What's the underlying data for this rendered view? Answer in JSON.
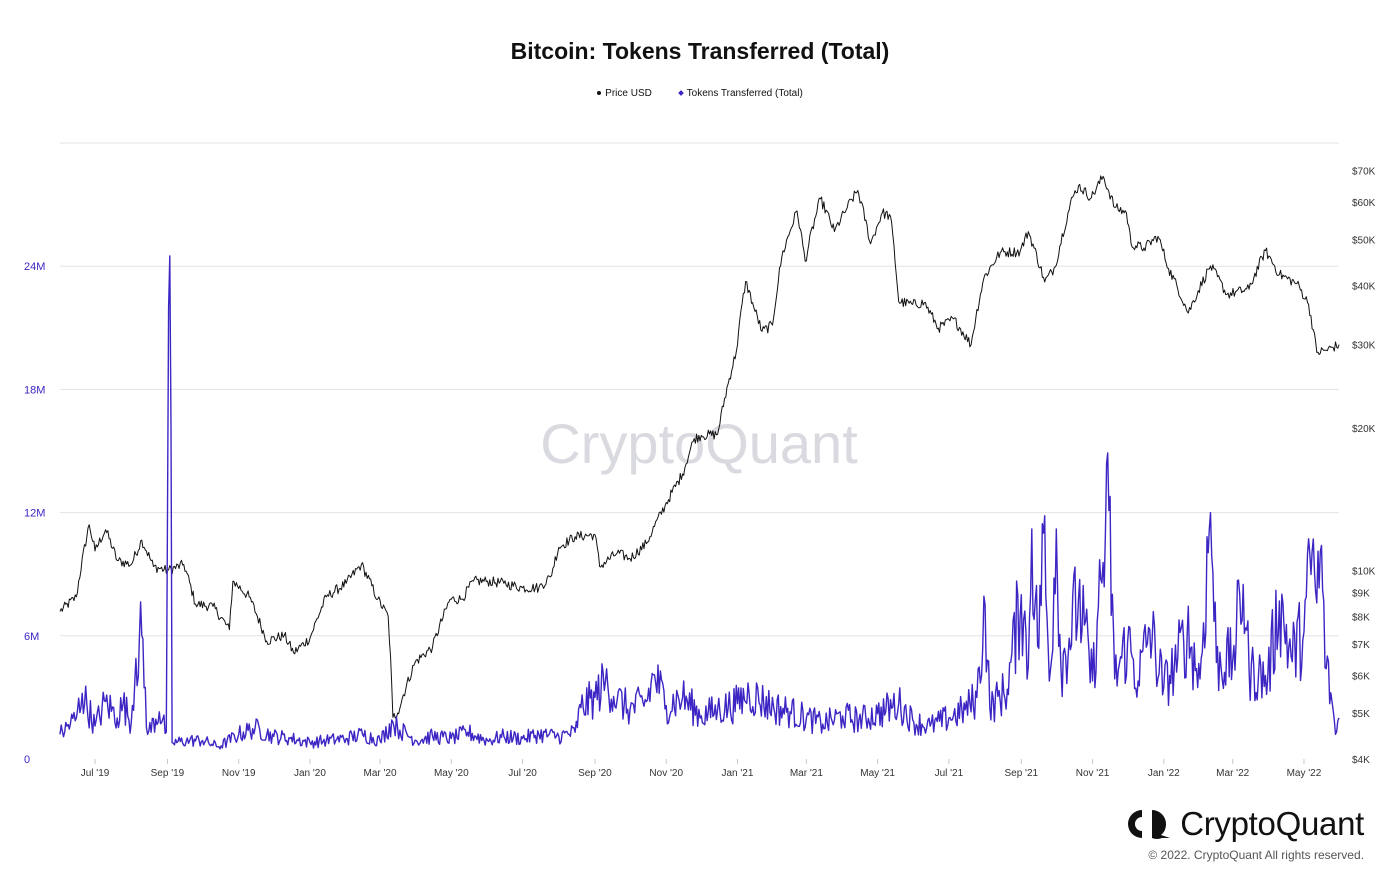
{
  "brand": {
    "name": "CryptoQuant",
    "watermark": "CryptoQuant",
    "copyright": "© 2022. CryptoQuant All rights reserved."
  },
  "colors": {
    "price": "#111111",
    "tokens": "#3b26c4",
    "grid": "#e3e3e3",
    "left_axis_text": "#3b26c4",
    "right_axis_text": "#333333",
    "watermark": "#d9d9e0"
  },
  "chart_data": {
    "type": "line",
    "title": "Bitcoin: Tokens Transferred (Total)",
    "legend_position": "top-center",
    "grid": true,
    "x_range": [
      "2019-06-01",
      "2022-05-31"
    ],
    "x_ticks": [
      {
        "label": "Jul '19",
        "date": "2019-07-01"
      },
      {
        "label": "Sep '19",
        "date": "2019-09-01"
      },
      {
        "label": "Nov '19",
        "date": "2019-11-01"
      },
      {
        "label": "Jan '20",
        "date": "2020-01-01"
      },
      {
        "label": "Mar '20",
        "date": "2020-03-01"
      },
      {
        "label": "May '20",
        "date": "2020-05-01"
      },
      {
        "label": "Jul '20",
        "date": "2020-07-01"
      },
      {
        "label": "Sep '20",
        "date": "2020-09-01"
      },
      {
        "label": "Nov '20",
        "date": "2020-11-01"
      },
      {
        "label": "Jan '21",
        "date": "2021-01-01"
      },
      {
        "label": "Mar '21",
        "date": "2021-03-01"
      },
      {
        "label": "May '21",
        "date": "2021-05-01"
      },
      {
        "label": "Jul '21",
        "date": "2021-07-01"
      },
      {
        "label": "Sep '21",
        "date": "2021-09-01"
      },
      {
        "label": "Nov '21",
        "date": "2021-11-01"
      },
      {
        "label": "Jan '22",
        "date": "2022-01-01"
      },
      {
        "label": "Mar '22",
        "date": "2022-03-01"
      },
      {
        "label": "May '22",
        "date": "2022-05-01"
      }
    ],
    "left_axis": {
      "series": "Tokens Transferred (Total)",
      "scale": "linear",
      "range": [
        0,
        30000000
      ],
      "ticks": [
        {
          "label": "0",
          "value": 0
        },
        {
          "label": "6M",
          "value": 6000000
        },
        {
          "label": "12M",
          "value": 12000000
        },
        {
          "label": "18M",
          "value": 18000000
        },
        {
          "label": "24M",
          "value": 24000000
        }
      ]
    },
    "right_axis": {
      "series": "Price USD",
      "scale": "log",
      "range": [
        4000,
        80000
      ],
      "ticks": [
        {
          "label": "$4K",
          "value": 4000
        },
        {
          "label": "$5K",
          "value": 5000
        },
        {
          "label": "$6K",
          "value": 6000
        },
        {
          "label": "$7K",
          "value": 7000
        },
        {
          "label": "$8K",
          "value": 8000
        },
        {
          "label": "$9K",
          "value": 9000
        },
        {
          "label": "$10K",
          "value": 10000
        },
        {
          "label": "$20K",
          "value": 20000
        },
        {
          "label": "$30K",
          "value": 30000
        },
        {
          "label": "$40K",
          "value": 40000
        },
        {
          "label": "$50K",
          "value": 50000
        },
        {
          "label": "$60K",
          "value": 60000
        },
        {
          "label": "$70K",
          "value": 70000
        }
      ]
    },
    "series": [
      {
        "name": "Price USD",
        "axis": "right",
        "color": "#111111",
        "points": [
          [
            "2019-06-01",
            8200
          ],
          [
            "2019-06-15",
            8800
          ],
          [
            "2019-06-26",
            12500
          ],
          [
            "2019-07-01",
            11000
          ],
          [
            "2019-07-10",
            12200
          ],
          [
            "2019-07-20",
            10500
          ],
          [
            "2019-08-01",
            10300
          ],
          [
            "2019-08-10",
            11600
          ],
          [
            "2019-08-20",
            10200
          ],
          [
            "2019-09-01",
            10000
          ],
          [
            "2019-09-15",
            10300
          ],
          [
            "2019-09-25",
            8500
          ],
          [
            "2019-10-10",
            8400
          ],
          [
            "2019-10-24",
            7500
          ],
          [
            "2019-10-27",
            9500
          ],
          [
            "2019-11-10",
            8800
          ],
          [
            "2019-11-25",
            7100
          ],
          [
            "2019-12-10",
            7300
          ],
          [
            "2019-12-18",
            6700
          ],
          [
            "2020-01-01",
            7200
          ],
          [
            "2020-01-15",
            8800
          ],
          [
            "2020-02-01",
            9400
          ],
          [
            "2020-02-14",
            10300
          ],
          [
            "2020-02-28",
            8700
          ],
          [
            "2020-03-08",
            8000
          ],
          [
            "2020-03-12",
            4900
          ],
          [
            "2020-03-16",
            5000
          ],
          [
            "2020-03-31",
            6400
          ],
          [
            "2020-04-15",
            6900
          ],
          [
            "2020-04-30",
            8700
          ],
          [
            "2020-05-10",
            8700
          ],
          [
            "2020-05-20",
            9500
          ],
          [
            "2020-06-01",
            9500
          ],
          [
            "2020-06-15",
            9400
          ],
          [
            "2020-07-01",
            9200
          ],
          [
            "2020-07-15",
            9200
          ],
          [
            "2020-07-25",
            9700
          ],
          [
            "2020-08-01",
            11200
          ],
          [
            "2020-08-15",
            11800
          ],
          [
            "2020-09-01",
            11900
          ],
          [
            "2020-09-05",
            10200
          ],
          [
            "2020-09-20",
            10900
          ],
          [
            "2020-10-01",
            10600
          ],
          [
            "2020-10-15",
            11400
          ],
          [
            "2020-10-31",
            13700
          ],
          [
            "2020-11-15",
            16000
          ],
          [
            "2020-11-25",
            19000
          ],
          [
            "2020-12-01",
            19300
          ],
          [
            "2020-12-15",
            19400
          ],
          [
            "2020-12-31",
            29000
          ],
          [
            "2021-01-08",
            40800
          ],
          [
            "2021-01-15",
            36000
          ],
          [
            "2021-01-22",
            32000
          ],
          [
            "2021-01-31",
            33000
          ],
          [
            "2021-02-08",
            46000
          ],
          [
            "2021-02-21",
            57500
          ],
          [
            "2021-02-28",
            45000
          ],
          [
            "2021-03-13",
            61000
          ],
          [
            "2021-03-25",
            52000
          ],
          [
            "2021-04-05",
            58500
          ],
          [
            "2021-04-14",
            63500
          ],
          [
            "2021-04-25",
            49000
          ],
          [
            "2021-05-05",
            57000
          ],
          [
            "2021-05-12",
            56000
          ],
          [
            "2021-05-19",
            37000
          ],
          [
            "2021-05-31",
            36500
          ],
          [
            "2021-06-10",
            36800
          ],
          [
            "2021-06-22",
            32500
          ],
          [
            "2021-07-05",
            34000
          ],
          [
            "2021-07-20",
            30000
          ],
          [
            "2021-07-31",
            41500
          ],
          [
            "2021-08-14",
            47000
          ],
          [
            "2021-08-31",
            47200
          ],
          [
            "2021-09-07",
            52000
          ],
          [
            "2021-09-21",
            40700
          ],
          [
            "2021-09-30",
            43800
          ],
          [
            "2021-10-15",
            61500
          ],
          [
            "2021-10-20",
            65000
          ],
          [
            "2021-10-31",
            61300
          ],
          [
            "2021-11-10",
            68000
          ],
          [
            "2021-11-20",
            58500
          ],
          [
            "2021-11-30",
            57000
          ],
          [
            "2021-12-04",
            49000
          ],
          [
            "2021-12-15",
            48000
          ],
          [
            "2021-12-27",
            50800
          ],
          [
            "2022-01-05",
            43500
          ],
          [
            "2022-01-22",
            35000
          ],
          [
            "2022-02-10",
            44000
          ],
          [
            "2022-02-24",
            38300
          ],
          [
            "2022-03-15",
            39300
          ],
          [
            "2022-03-29",
            47400
          ],
          [
            "2022-04-10",
            42200
          ],
          [
            "2022-04-25",
            40400
          ],
          [
            "2022-05-05",
            36500
          ],
          [
            "2022-05-12",
            28900
          ],
          [
            "2022-05-20",
            29200
          ],
          [
            "2022-05-31",
            30000
          ]
        ]
      },
      {
        "name": "Tokens Transferred (Total)",
        "axis": "left",
        "color": "#3b26c4",
        "points": [
          [
            "2019-06-01",
            1200000
          ],
          [
            "2019-06-15",
            2000000
          ],
          [
            "2019-06-20",
            3200000
          ],
          [
            "2019-07-01",
            1600000
          ],
          [
            "2019-07-10",
            2800000
          ],
          [
            "2019-07-20",
            2000000
          ],
          [
            "2019-07-25",
            2700000
          ],
          [
            "2019-08-01",
            1800000
          ],
          [
            "2019-08-05",
            4900000
          ],
          [
            "2019-08-10",
            6000000
          ],
          [
            "2019-08-15",
            1200000
          ],
          [
            "2019-08-25",
            2300000
          ],
          [
            "2019-08-31",
            1300000
          ],
          [
            "2019-09-03",
            24500000
          ],
          [
            "2019-09-05",
            800000
          ],
          [
            "2019-09-20",
            900000
          ],
          [
            "2019-10-01",
            900000
          ],
          [
            "2019-10-15",
            600000
          ],
          [
            "2019-11-01",
            1200000
          ],
          [
            "2019-11-15",
            1500000
          ],
          [
            "2019-12-01",
            1100000
          ],
          [
            "2019-12-15",
            1000000
          ],
          [
            "2020-01-01",
            800000
          ],
          [
            "2020-01-15",
            900000
          ],
          [
            "2020-02-01",
            1000000
          ],
          [
            "2020-02-15",
            1200000
          ],
          [
            "2020-03-01",
            900000
          ],
          [
            "2020-03-12",
            1800000
          ],
          [
            "2020-03-16",
            1500000
          ],
          [
            "2020-04-01",
            900000
          ],
          [
            "2020-04-15",
            1100000
          ],
          [
            "2020-05-01",
            1000000
          ],
          [
            "2020-05-15",
            1300000
          ],
          [
            "2020-06-01",
            900000
          ],
          [
            "2020-06-15",
            1100000
          ],
          [
            "2020-07-01",
            1000000
          ],
          [
            "2020-07-15",
            1200000
          ],
          [
            "2020-08-01",
            1100000
          ],
          [
            "2020-08-15",
            1300000
          ],
          [
            "2020-08-20",
            2500000
          ],
          [
            "2020-09-01",
            3000000
          ],
          [
            "2020-09-10",
            3800000
          ],
          [
            "2020-09-20",
            2900000
          ],
          [
            "2020-10-01",
            2400000
          ],
          [
            "2020-10-15",
            2800000
          ],
          [
            "2020-10-22",
            4100000
          ],
          [
            "2020-11-01",
            2600000
          ],
          [
            "2020-11-15",
            3000000
          ],
          [
            "2020-12-01",
            2100000
          ],
          [
            "2020-12-15",
            2400000
          ],
          [
            "2021-01-01",
            2700000
          ],
          [
            "2021-01-11",
            3200000
          ],
          [
            "2021-02-01",
            2500000
          ],
          [
            "2021-02-15",
            2300000
          ],
          [
            "2021-03-01",
            2000000
          ],
          [
            "2021-03-15",
            1700000
          ],
          [
            "2021-04-01",
            2100000
          ],
          [
            "2021-04-15",
            1900000
          ],
          [
            "2021-05-01",
            2200000
          ],
          [
            "2021-05-19",
            2700000
          ],
          [
            "2021-06-01",
            1800000
          ],
          [
            "2021-06-15",
            1600000
          ],
          [
            "2021-07-01",
            2000000
          ],
          [
            "2021-07-15",
            2400000
          ],
          [
            "2021-07-25",
            3000000
          ],
          [
            "2021-08-01",
            7500000
          ],
          [
            "2021-08-05",
            2500000
          ],
          [
            "2021-08-20",
            3400000
          ],
          [
            "2021-09-01",
            8000000
          ],
          [
            "2021-09-07",
            4500000
          ],
          [
            "2021-09-10",
            11200000
          ],
          [
            "2021-09-15",
            5500000
          ],
          [
            "2021-09-20",
            11000000
          ],
          [
            "2021-09-25",
            3800000
          ],
          [
            "2021-10-01",
            11200000
          ],
          [
            "2021-10-05",
            4400000
          ],
          [
            "2021-10-20",
            7800000
          ],
          [
            "2021-11-01",
            3800000
          ],
          [
            "2021-11-05",
            6700000
          ],
          [
            "2021-11-15",
            12100000
          ],
          [
            "2021-11-20",
            3900000
          ],
          [
            "2021-12-01",
            5700000
          ],
          [
            "2021-12-10",
            3800000
          ],
          [
            "2021-12-20",
            6300000
          ],
          [
            "2022-01-01",
            3500000
          ],
          [
            "2022-01-10",
            4500000
          ],
          [
            "2022-01-21",
            6100000
          ],
          [
            "2022-02-01",
            3900000
          ],
          [
            "2022-02-10",
            12000000
          ],
          [
            "2022-02-15",
            4700000
          ],
          [
            "2022-03-01",
            4800000
          ],
          [
            "2022-03-10",
            8500000
          ],
          [
            "2022-03-15",
            4300000
          ],
          [
            "2022-03-31",
            3900000
          ],
          [
            "2022-04-10",
            7700000
          ],
          [
            "2022-04-20",
            5000000
          ],
          [
            "2022-05-01",
            6200000
          ],
          [
            "2022-05-08",
            10100000
          ],
          [
            "2022-05-12",
            7600000
          ],
          [
            "2022-05-15",
            10100000
          ],
          [
            "2022-05-20",
            4400000
          ],
          [
            "2022-05-25",
            2800000
          ],
          [
            "2022-05-28",
            1200000
          ],
          [
            "2022-05-31",
            2000000
          ]
        ]
      }
    ]
  }
}
